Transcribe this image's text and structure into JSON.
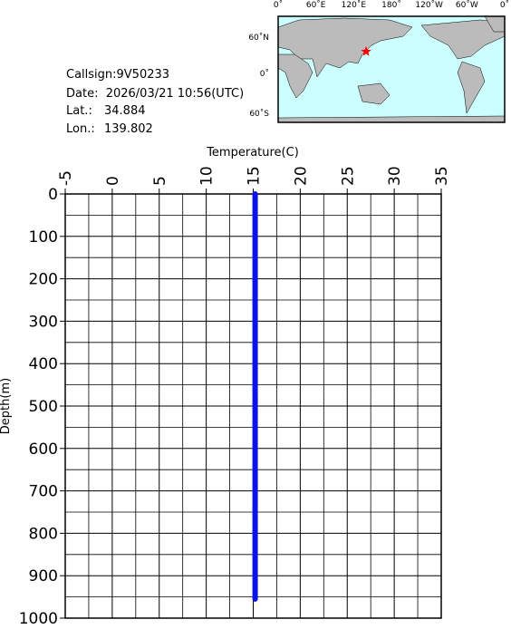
{
  "chart_data": {
    "type": "line",
    "info": {
      "callsign": "Callsign:9V50233",
      "date": "Date:  2026/03/21 10:56(UTC)",
      "lat_label": "Lat.:",
      "lat": 34.884,
      "lon_label": "Lon.:",
      "lon": 139.802
    },
    "map": {
      "lon_labels": [
        "0˚",
        "60˚E",
        "120˚E",
        "180˚",
        "120˚W",
        "60˚W",
        "0˚"
      ],
      "lat_labels": [
        "60˚N",
        "0˚",
        "60˚S"
      ]
    },
    "xlabel": "Temperature(C)",
    "ylabel": "Depth(m)",
    "xlim": [
      -5,
      35
    ],
    "xticks": [
      -5,
      0,
      5,
      10,
      15,
      20,
      25,
      30,
      35
    ],
    "ylim": [
      0,
      1000
    ],
    "yticks": [
      0,
      100,
      200,
      300,
      400,
      500,
      600,
      700,
      800,
      900,
      1000
    ],
    "y_inverted": true,
    "grid": true,
    "series": [
      {
        "color": "#0a14e6",
        "x": [
          15.2,
          15.2
        ],
        "y": [
          0,
          955
        ]
      }
    ]
  }
}
